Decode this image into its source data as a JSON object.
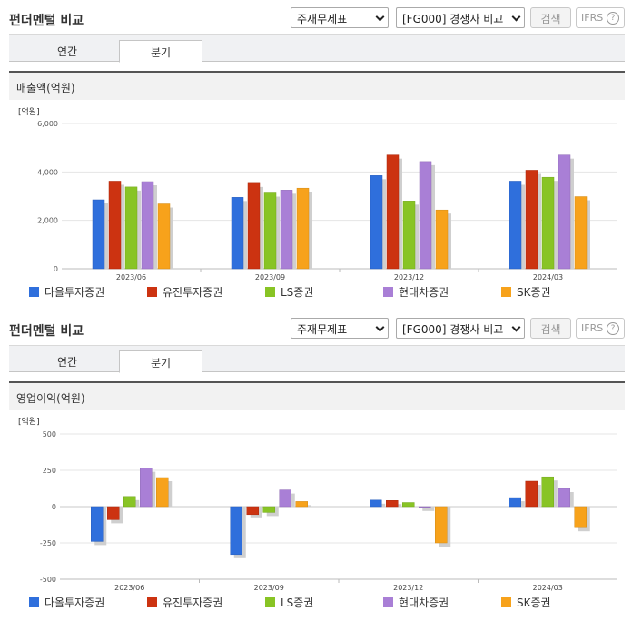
{
  "panels": [
    {
      "title": "펀더멘털 비교",
      "select1": "주재무제표",
      "select2": "[FG000] 경쟁사 비교",
      "search_btn": "검색",
      "ifrs": "IFRS",
      "help": "?",
      "tabs": [
        "연간",
        "분기"
      ],
      "section": "매출액(억원)"
    },
    {
      "title": "펀더멘털 비교",
      "select1": "주재무제표",
      "select2": "[FG000] 경쟁사 비교",
      "search_btn": "검색",
      "ifrs": "IFRS",
      "help": "?",
      "tabs": [
        "연간",
        "분기"
      ],
      "section": "영업이익(억원)"
    }
  ],
  "colors": {
    "다올투자증권": "#2f6fdc",
    "유진투자증권": "#cc3311",
    "LS증권": "#88c425",
    "현대차증권": "#a97fd6",
    "SK증권": "#f7a21b"
  },
  "chart_data": [
    {
      "type": "bar",
      "unit": "[억원]",
      "categories": [
        "2023/06",
        "2023/09",
        "2023/12",
        "2024/03"
      ],
      "ylim": [
        0,
        6000
      ],
      "yticks": [
        "6,000",
        "4,000",
        "2,000",
        "0"
      ],
      "ytick_values": [
        6000,
        4000,
        2000,
        0
      ],
      "series": [
        {
          "name": "다올투자증권",
          "values": [
            2850,
            2950,
            3850,
            3620
          ]
        },
        {
          "name": "유진투자증권",
          "values": [
            3620,
            3530,
            4700,
            4070
          ]
        },
        {
          "name": "LS증권",
          "values": [
            3380,
            3130,
            2800,
            3780
          ]
        },
        {
          "name": "현대차증권",
          "values": [
            3600,
            3250,
            4430,
            4700
          ]
        },
        {
          "name": "SK증권",
          "values": [
            2680,
            3330,
            2430,
            2980
          ]
        }
      ]
    },
    {
      "type": "bar",
      "unit": "[억원]",
      "categories": [
        "2023/06",
        "2023/09",
        "2023/12",
        "2024/03"
      ],
      "ylim": [
        -500,
        500
      ],
      "yticks": [
        "500",
        "250",
        "0",
        "-250",
        "-500"
      ],
      "ytick_values": [
        500,
        250,
        0,
        -250,
        -500
      ],
      "series": [
        {
          "name": "다올투자증권",
          "values": [
            -240,
            -330,
            45,
            62
          ]
        },
        {
          "name": "유진투자증권",
          "values": [
            -90,
            -55,
            42,
            175
          ]
        },
        {
          "name": "LS증권",
          "values": [
            70,
            -40,
            28,
            205
          ]
        },
        {
          "name": "현대차증권",
          "values": [
            265,
            115,
            -5,
            125
          ]
        },
        {
          "name": "SK증권",
          "values": [
            200,
            35,
            -250,
            -145
          ]
        }
      ]
    }
  ]
}
